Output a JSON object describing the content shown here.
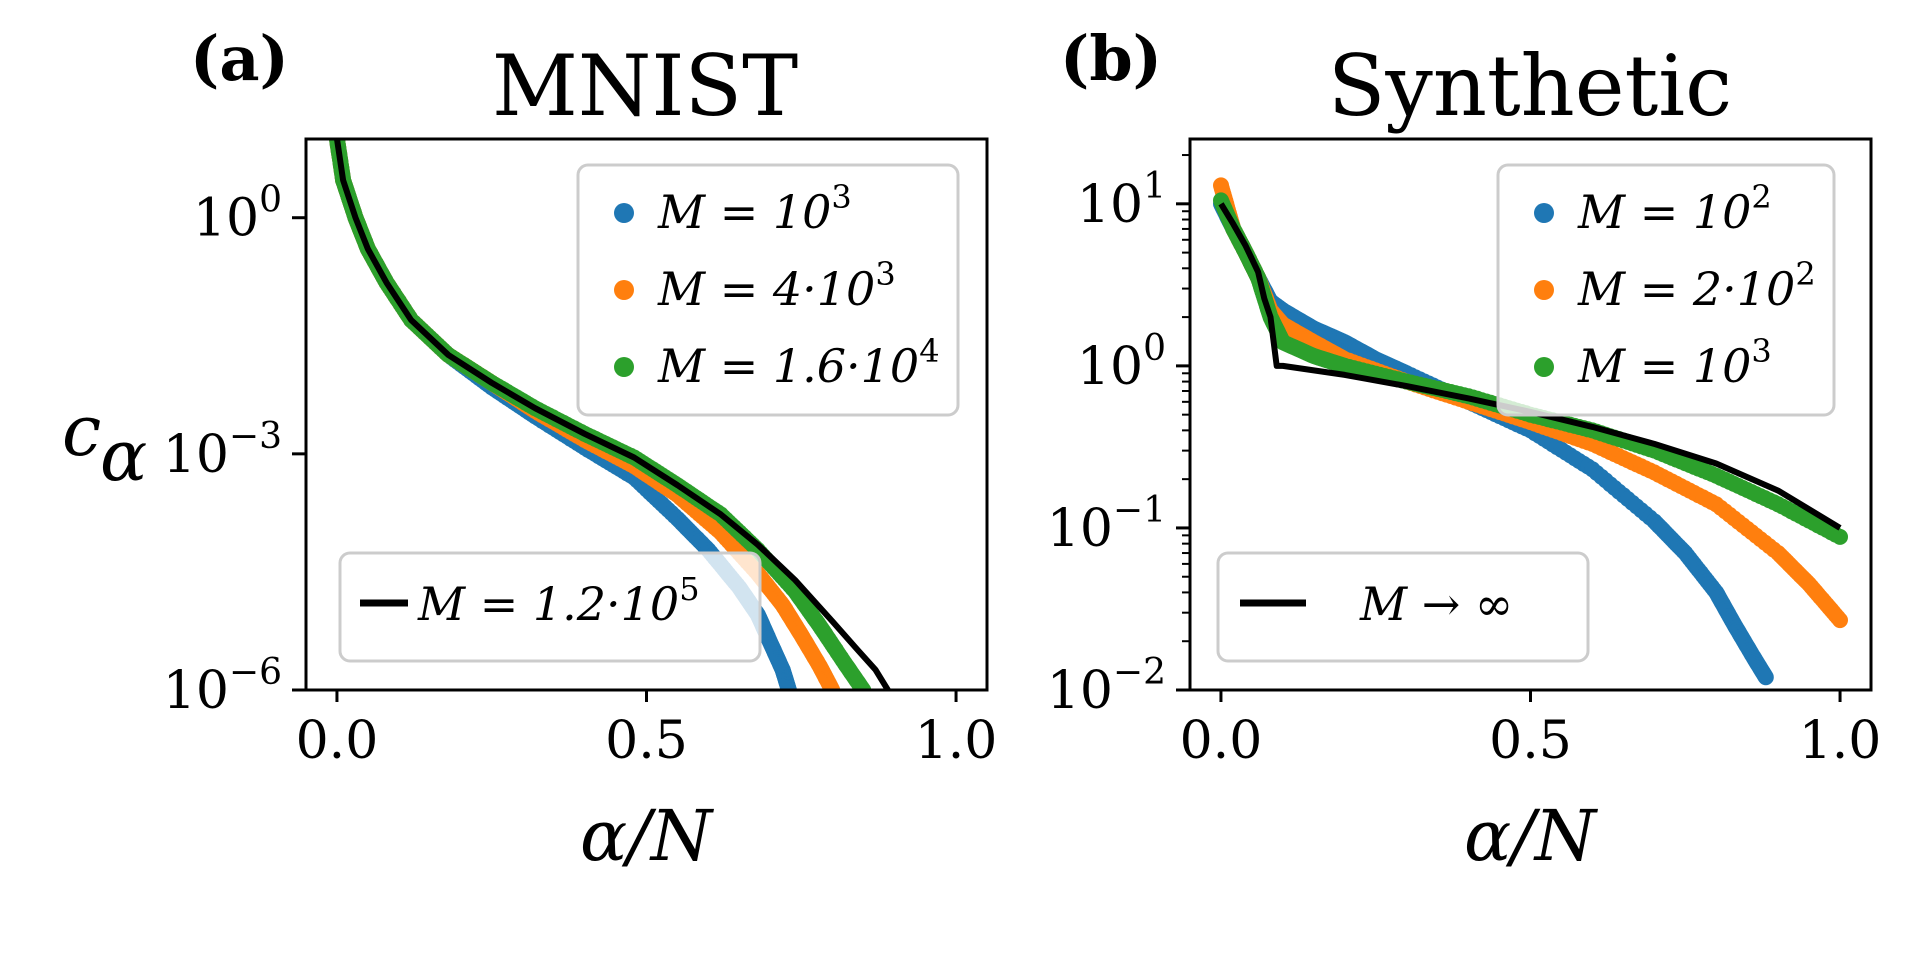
{
  "chart_data": [
    {
      "type": "scatter",
      "panel": "(a)",
      "title": "MNIST",
      "xlabel": "α/N",
      "ylabel": "c",
      "ylabel_sub": "α",
      "yscale": "log",
      "xlim": [
        -0.05,
        1.05
      ],
      "ylim_exp": [
        -6,
        1
      ],
      "xticks": [
        {
          "value": 0.0,
          "label": "0.0"
        },
        {
          "value": 0.5,
          "label": "0.5"
        },
        {
          "value": 1.0,
          "label": "1.0"
        }
      ],
      "yticks": [
        {
          "exp": 0,
          "base": "10",
          "sup": "0"
        },
        {
          "exp": -3,
          "base": "10",
          "sup": "−3"
        },
        {
          "exp": -6,
          "base": "10",
          "sup": "−6"
        }
      ],
      "series": [
        {
          "name": "M = 10^3",
          "label_pre": "M = 10",
          "label_sup": "3",
          "color": "#1f77b4",
          "style": "points",
          "x": [
            0.0,
            0.01,
            0.03,
            0.05,
            0.08,
            0.12,
            0.18,
            0.25,
            0.32,
            0.4,
            0.48,
            0.55,
            0.6,
            0.65,
            0.68,
            0.7,
            0.72,
            0.73
          ],
          "y": [
            10,
            3,
            1,
            0.4,
            0.15,
            0.05,
            0.018,
            0.007,
            0.003,
            0.0012,
            0.0005,
            0.00015,
            6e-05,
            2e-05,
            9e-06,
            4e-06,
            1.8e-06,
            1e-06
          ]
        },
        {
          "name": "M = 4·10^3",
          "label_pre": "M = 4·10",
          "label_sup": "3",
          "color": "#ff7f0e",
          "style": "points",
          "x": [
            0.0,
            0.01,
            0.03,
            0.05,
            0.08,
            0.12,
            0.18,
            0.25,
            0.32,
            0.4,
            0.48,
            0.55,
            0.62,
            0.68,
            0.72,
            0.75,
            0.78,
            0.8
          ],
          "y": [
            10,
            3,
            1,
            0.4,
            0.15,
            0.05,
            0.018,
            0.008,
            0.0035,
            0.0015,
            0.0007,
            0.0003,
            0.0001,
            3e-05,
            1.2e-05,
            5e-06,
            2e-06,
            1e-06
          ]
        },
        {
          "name": "M = 1.6·10^4",
          "label_pre": "M = 1.6·10",
          "label_sup": "4",
          "color": "#2ca02c",
          "style": "points",
          "x": [
            0.0,
            0.01,
            0.03,
            0.05,
            0.08,
            0.12,
            0.18,
            0.25,
            0.32,
            0.4,
            0.48,
            0.55,
            0.62,
            0.68,
            0.74,
            0.78,
            0.82,
            0.85
          ],
          "y": [
            10,
            3,
            1,
            0.4,
            0.15,
            0.05,
            0.018,
            0.008,
            0.0038,
            0.0018,
            0.0009,
            0.0004,
            0.00017,
            6e-05,
            1.8e-05,
            6.5e-06,
            2.2e-06,
            1e-06
          ]
        },
        {
          "name": "M = 1.2·10^5",
          "label_pre": "M = 1.2·10",
          "label_sup": "5",
          "color": "#000000",
          "style": "line",
          "x": [
            0.0,
            0.01,
            0.03,
            0.05,
            0.08,
            0.12,
            0.18,
            0.25,
            0.32,
            0.4,
            0.48,
            0.55,
            0.62,
            0.68,
            0.74,
            0.8,
            0.84,
            0.87,
            0.89
          ],
          "y": [
            10,
            3,
            1,
            0.4,
            0.15,
            0.05,
            0.018,
            0.008,
            0.0038,
            0.0018,
            0.0009,
            0.0004,
            0.00017,
            7e-05,
            2.5e-05,
            7.5e-06,
            3.3e-06,
            1.8e-06,
            1e-06
          ]
        }
      ],
      "legends": [
        {
          "position": "upper-right",
          "entries": [
            0,
            1,
            2
          ]
        },
        {
          "position": "lower-left",
          "entries": [
            3
          ]
        }
      ]
    },
    {
      "type": "scatter",
      "panel": "(b)",
      "title": "Synthetic",
      "xlabel": "α/N",
      "ylabel": "",
      "yscale": "log",
      "xlim": [
        -0.05,
        1.05
      ],
      "ylim_exp": [
        -2,
        1.4
      ],
      "xticks": [
        {
          "value": 0.0,
          "label": "0.0"
        },
        {
          "value": 0.5,
          "label": "0.5"
        },
        {
          "value": 1.0,
          "label": "1.0"
        }
      ],
      "yticks": [
        {
          "exp": 1,
          "base": "10",
          "sup": "1"
        },
        {
          "exp": 0,
          "base": "10",
          "sup": "0"
        },
        {
          "exp": -1,
          "base": "10",
          "sup": "−1"
        },
        {
          "exp": -2,
          "base": "10",
          "sup": "−2"
        }
      ],
      "series": [
        {
          "name": "M = 10^2",
          "label_pre": "M = 10",
          "label_sup": "2",
          "color": "#1f77b4",
          "style": "points",
          "x": [
            0.0,
            0.02,
            0.04,
            0.06,
            0.08,
            0.1,
            0.15,
            0.2,
            0.25,
            0.3,
            0.4,
            0.5,
            0.6,
            0.7,
            0.75,
            0.8,
            0.83,
            0.86,
            0.88
          ],
          "y": [
            10,
            7,
            5,
            3.5,
            2.5,
            2.2,
            1.7,
            1.4,
            1.1,
            0.9,
            0.6,
            0.4,
            0.23,
            0.11,
            0.07,
            0.04,
            0.025,
            0.016,
            0.012
          ]
        },
        {
          "name": "M = 2·10^2",
          "label_pre": "M = 2·10",
          "label_sup": "2",
          "color": "#ff7f0e",
          "style": "points",
          "x": [
            0.0,
            0.02,
            0.04,
            0.06,
            0.08,
            0.1,
            0.15,
            0.2,
            0.3,
            0.4,
            0.5,
            0.6,
            0.7,
            0.8,
            0.9,
            0.95,
            1.0
          ],
          "y": [
            13,
            7,
            5,
            3.5,
            2.2,
            1.8,
            1.4,
            1.1,
            0.8,
            0.6,
            0.45,
            0.33,
            0.22,
            0.14,
            0.07,
            0.045,
            0.027
          ]
        },
        {
          "name": "M = 10^3",
          "label_pre": "M = 10",
          "label_sup": "3",
          "color": "#2ca02c",
          "style": "points",
          "x": [
            0.0,
            0.02,
            0.04,
            0.06,
            0.08,
            0.1,
            0.15,
            0.2,
            0.3,
            0.4,
            0.5,
            0.6,
            0.7,
            0.8,
            0.9,
            1.0
          ],
          "y": [
            10.5,
            7,
            5,
            3.5,
            2,
            1.4,
            1.15,
            1.0,
            0.8,
            0.65,
            0.5,
            0.4,
            0.3,
            0.21,
            0.14,
            0.088
          ]
        },
        {
          "name": "M → ∞",
          "label_pre": "M → ∞",
          "label_sup": "",
          "color": "#000000",
          "style": "line",
          "x": [
            0.0,
            0.02,
            0.04,
            0.06,
            0.07,
            0.08,
            0.09,
            0.1,
            0.2,
            0.3,
            0.4,
            0.5,
            0.6,
            0.7,
            0.8,
            0.9,
            1.0
          ],
          "y": [
            10,
            7.5,
            5.5,
            3.8,
            2.6,
            2.0,
            1.0,
            1.0,
            0.88,
            0.75,
            0.63,
            0.52,
            0.42,
            0.33,
            0.25,
            0.17,
            0.1
          ]
        }
      ],
      "legends": [
        {
          "position": "upper-right",
          "entries": [
            0,
            1,
            2
          ]
        },
        {
          "position": "lower-left",
          "entries": [
            3
          ]
        }
      ]
    }
  ]
}
